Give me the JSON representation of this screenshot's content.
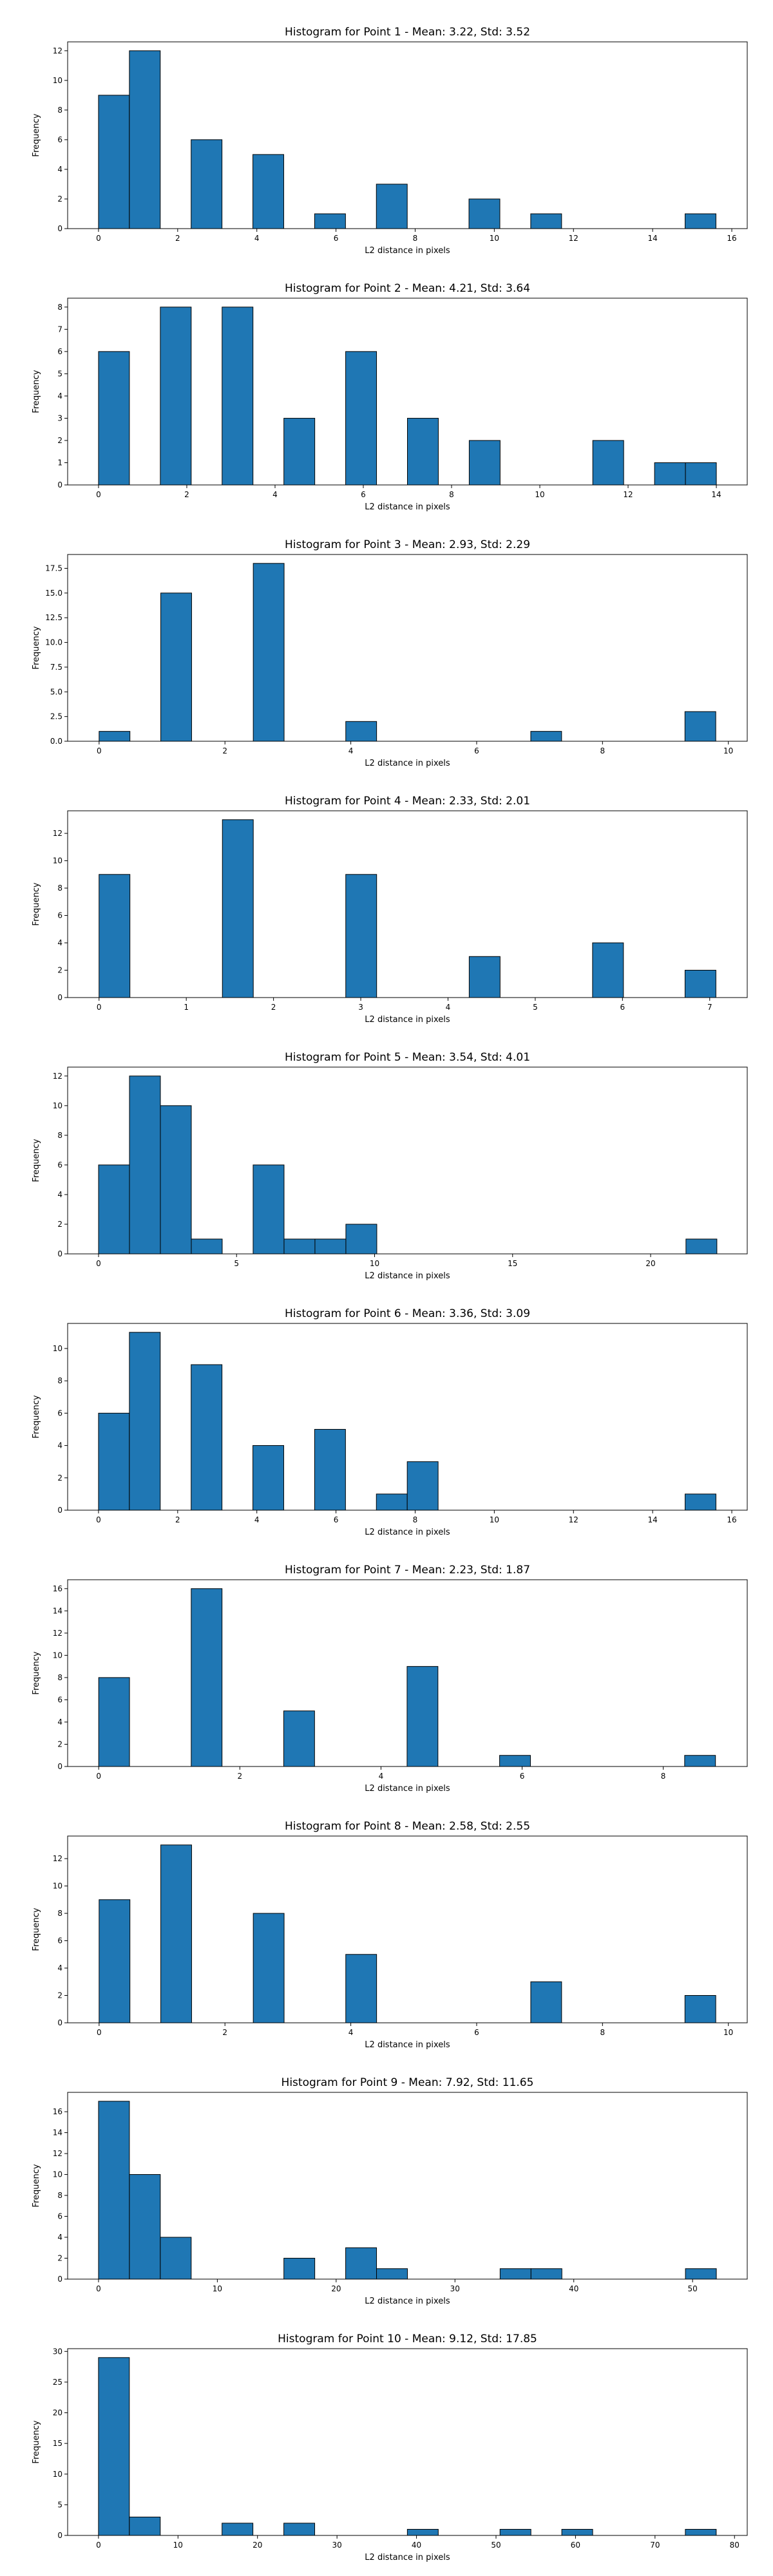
{
  "bar_color": "#1f77b4",
  "edge_color": "#000000",
  "chart_data": [
    {
      "type": "bar",
      "title": "Histogram for Point 1 - Mean: 3.22, Std: 3.52",
      "xlabel": "L2 distance in pixels",
      "ylabel": "Frequency",
      "xlim": [
        -0.78,
        16.39
      ],
      "ylim": [
        0,
        12.6
      ],
      "xticks": [
        0,
        2,
        4,
        6,
        8,
        10,
        12,
        14,
        16
      ],
      "yticks": [
        0,
        2,
        4,
        6,
        8,
        10,
        12
      ],
      "bins": [
        {
          "x0": 0.0,
          "x1": 0.78,
          "count": 9
        },
        {
          "x0": 0.78,
          "x1": 1.56,
          "count": 12
        },
        {
          "x0": 2.34,
          "x1": 3.12,
          "count": 6
        },
        {
          "x0": 3.9,
          "x1": 4.68,
          "count": 5
        },
        {
          "x0": 5.46,
          "x1": 6.24,
          "count": 1
        },
        {
          "x0": 7.02,
          "x1": 7.8,
          "count": 3
        },
        {
          "x0": 9.36,
          "x1": 10.14,
          "count": 2
        },
        {
          "x0": 10.92,
          "x1": 11.7,
          "count": 1
        },
        {
          "x0": 14.82,
          "x1": 15.6,
          "count": 1
        }
      ]
    },
    {
      "type": "bar",
      "title": "Histogram for Point 2 - Mean: 4.21, Std: 3.64",
      "xlabel": "L2 distance in pixels",
      "ylabel": "Frequency",
      "xlim": [
        -0.7,
        14.7
      ],
      "ylim": [
        0,
        8.4
      ],
      "xticks": [
        0,
        2,
        4,
        6,
        8,
        10,
        12,
        14
      ],
      "yticks": [
        0,
        1,
        2,
        3,
        4,
        5,
        6,
        7,
        8
      ],
      "bins": [
        {
          "x0": 0.0,
          "x1": 0.7,
          "count": 6
        },
        {
          "x0": 1.4,
          "x1": 2.1,
          "count": 8
        },
        {
          "x0": 2.8,
          "x1": 3.5,
          "count": 8
        },
        {
          "x0": 4.2,
          "x1": 4.9,
          "count": 3
        },
        {
          "x0": 5.6,
          "x1": 6.3,
          "count": 6
        },
        {
          "x0": 7.0,
          "x1": 7.7,
          "count": 3
        },
        {
          "x0": 8.4,
          "x1": 9.1,
          "count": 2
        },
        {
          "x0": 11.2,
          "x1": 11.9,
          "count": 2
        },
        {
          "x0": 12.6,
          "x1": 13.3,
          "count": 1
        },
        {
          "x0": 13.3,
          "x1": 14.0,
          "count": 1
        }
      ]
    },
    {
      "type": "bar",
      "title": "Histogram for Point 3 - Mean: 2.93, Std: 2.29",
      "xlabel": "L2 distance in pixels",
      "ylabel": "Frequency",
      "xlim": [
        -0.5,
        10.3
      ],
      "ylim": [
        0,
        18.9
      ],
      "xticks": [
        0,
        2,
        4,
        6,
        8,
        10
      ],
      "ytick_labels": [
        "0.0",
        "2.5",
        "5.0",
        "7.5",
        "10.0",
        "12.5",
        "15.0",
        "17.5"
      ],
      "yticks": [
        0,
        2.5,
        5,
        7.5,
        10,
        12.5,
        15,
        17.5
      ],
      "bins": [
        {
          "x0": 0.0,
          "x1": 0.49,
          "count": 1
        },
        {
          "x0": 0.98,
          "x1": 1.47,
          "count": 15
        },
        {
          "x0": 2.45,
          "x1": 2.94,
          "count": 18
        },
        {
          "x0": 3.92,
          "x1": 4.41,
          "count": 2
        },
        {
          "x0": 6.86,
          "x1": 7.35,
          "count": 1
        },
        {
          "x0": 9.31,
          "x1": 9.8,
          "count": 3
        }
      ]
    },
    {
      "type": "bar",
      "title": "Histogram for Point 4 - Mean: 2.33, Std: 2.01",
      "xlabel": "L2 distance in pixels",
      "ylabel": "Frequency",
      "xlim": [
        -0.36,
        7.43
      ],
      "ylim": [
        0,
        13.65
      ],
      "xticks": [
        0,
        1,
        2,
        3,
        4,
        5,
        6,
        7
      ],
      "yticks": [
        0,
        2,
        4,
        6,
        8,
        10,
        12
      ],
      "bins": [
        {
          "x0": 0.0,
          "x1": 0.354,
          "count": 9
        },
        {
          "x0": 1.414,
          "x1": 1.768,
          "count": 13
        },
        {
          "x0": 2.828,
          "x1": 3.182,
          "count": 9
        },
        {
          "x0": 4.243,
          "x1": 4.597,
          "count": 3
        },
        {
          "x0": 5.657,
          "x1": 6.011,
          "count": 4
        },
        {
          "x0": 6.717,
          "x1": 7.071,
          "count": 2
        }
      ]
    },
    {
      "type": "bar",
      "title": "Histogram for Point 5 - Mean: 3.54, Std: 4.01",
      "xlabel": "L2 distance in pixels",
      "ylabel": "Frequency",
      "xlim": [
        -1.12,
        23.5
      ],
      "ylim": [
        0,
        12.6
      ],
      "xticks": [
        0,
        5,
        10,
        15,
        20
      ],
      "yticks": [
        0,
        2,
        4,
        6,
        8,
        10,
        12
      ],
      "bins": [
        {
          "x0": 0.0,
          "x1": 1.12,
          "count": 6
        },
        {
          "x0": 1.12,
          "x1": 2.24,
          "count": 12
        },
        {
          "x0": 2.24,
          "x1": 3.36,
          "count": 10
        },
        {
          "x0": 3.36,
          "x1": 4.48,
          "count": 1
        },
        {
          "x0": 5.6,
          "x1": 6.72,
          "count": 6
        },
        {
          "x0": 6.72,
          "x1": 7.84,
          "count": 1
        },
        {
          "x0": 7.84,
          "x1": 8.96,
          "count": 1
        },
        {
          "x0": 8.96,
          "x1": 10.08,
          "count": 2
        },
        {
          "x0": 21.28,
          "x1": 22.4,
          "count": 1
        }
      ]
    },
    {
      "type": "bar",
      "title": "Histogram for Point 6 - Mean: 3.36, Std: 3.09",
      "xlabel": "L2 distance in pixels",
      "ylabel": "Frequency",
      "xlim": [
        -0.78,
        16.39
      ],
      "ylim": [
        0,
        11.55
      ],
      "xticks": [
        0,
        2,
        4,
        6,
        8,
        10,
        12,
        14,
        16
      ],
      "yticks": [
        0,
        2,
        4,
        6,
        8,
        10
      ],
      "bins": [
        {
          "x0": 0.0,
          "x1": 0.78,
          "count": 6
        },
        {
          "x0": 0.78,
          "x1": 1.56,
          "count": 11
        },
        {
          "x0": 2.34,
          "x1": 3.12,
          "count": 9
        },
        {
          "x0": 3.9,
          "x1": 4.68,
          "count": 4
        },
        {
          "x0": 5.46,
          "x1": 6.24,
          "count": 5
        },
        {
          "x0": 7.02,
          "x1": 7.8,
          "count": 1
        },
        {
          "x0": 7.8,
          "x1": 8.58,
          "count": 3
        },
        {
          "x0": 14.82,
          "x1": 15.6,
          "count": 1
        }
      ]
    },
    {
      "type": "bar",
      "title": "Histogram for Point 7 - Mean: 2.23, Std: 1.87",
      "xlabel": "L2 distance in pixels",
      "ylabel": "Frequency",
      "xlim": [
        -0.44,
        9.19
      ],
      "ylim": [
        0,
        16.8
      ],
      "xticks": [
        0,
        2,
        4,
        6,
        8
      ],
      "yticks": [
        0,
        2,
        4,
        6,
        8,
        10,
        12,
        14,
        16
      ],
      "bins": [
        {
          "x0": 0.0,
          "x1": 0.437,
          "count": 8
        },
        {
          "x0": 1.311,
          "x1": 1.748,
          "count": 16
        },
        {
          "x0": 2.622,
          "x1": 3.059,
          "count": 5
        },
        {
          "x0": 4.37,
          "x1": 4.807,
          "count": 9
        },
        {
          "x0": 5.681,
          "x1": 6.118,
          "count": 1
        },
        {
          "x0": 8.303,
          "x1": 8.74,
          "count": 1
        }
      ]
    },
    {
      "type": "bar",
      "title": "Histogram for Point 8 - Mean: 2.58, Std: 2.55",
      "xlabel": "L2 distance in pixels",
      "ylabel": "Frequency",
      "xlim": [
        -0.5,
        10.3
      ],
      "ylim": [
        0,
        13.65
      ],
      "xticks": [
        0,
        2,
        4,
        6,
        8,
        10
      ],
      "yticks": [
        0,
        2,
        4,
        6,
        8,
        10,
        12
      ],
      "bins": [
        {
          "x0": 0.0,
          "x1": 0.49,
          "count": 9
        },
        {
          "x0": 0.98,
          "x1": 1.47,
          "count": 13
        },
        {
          "x0": 2.45,
          "x1": 2.94,
          "count": 8
        },
        {
          "x0": 3.92,
          "x1": 4.41,
          "count": 5
        },
        {
          "x0": 6.86,
          "x1": 7.35,
          "count": 3
        },
        {
          "x0": 9.31,
          "x1": 9.8,
          "count": 2
        }
      ]
    },
    {
      "type": "bar",
      "title": "Histogram for Point 9 - Mean: 7.92, Std: 11.65",
      "xlabel": "L2 distance in pixels",
      "ylabel": "Frequency",
      "xlim": [
        -2.6,
        54.6
      ],
      "ylim": [
        0,
        17.85
      ],
      "xticks": [
        0,
        10,
        20,
        30,
        40,
        50
      ],
      "yticks": [
        0,
        2,
        4,
        6,
        8,
        10,
        12,
        14,
        16
      ],
      "bins": [
        {
          "x0": 0.0,
          "x1": 2.6,
          "count": 17
        },
        {
          "x0": 2.6,
          "x1": 5.2,
          "count": 10
        },
        {
          "x0": 5.2,
          "x1": 7.8,
          "count": 4
        },
        {
          "x0": 15.6,
          "x1": 18.2,
          "count": 2
        },
        {
          "x0": 20.8,
          "x1": 23.4,
          "count": 3
        },
        {
          "x0": 23.4,
          "x1": 26.0,
          "count": 1
        },
        {
          "x0": 33.8,
          "x1": 36.4,
          "count": 1
        },
        {
          "x0": 36.4,
          "x1": 39.0,
          "count": 1
        },
        {
          "x0": 49.4,
          "x1": 52.0,
          "count": 1
        }
      ]
    },
    {
      "type": "bar",
      "title": "Histogram for Point 10 - Mean: 9.12, Std: 17.85",
      "xlabel": "L2 distance in pixels",
      "ylabel": "Frequency",
      "xlim": [
        -3.88,
        81.6
      ],
      "ylim": [
        0,
        30.45
      ],
      "xticks": [
        0,
        10,
        20,
        30,
        40,
        50,
        60,
        70,
        80
      ],
      "yticks": [
        0,
        5,
        10,
        15,
        20,
        25,
        30
      ],
      "bins": [
        {
          "x0": 0.0,
          "x1": 3.885,
          "count": 29
        },
        {
          "x0": 3.885,
          "x1": 7.77,
          "count": 3
        },
        {
          "x0": 15.54,
          "x1": 19.425,
          "count": 2
        },
        {
          "x0": 23.31,
          "x1": 27.195,
          "count": 2
        },
        {
          "x0": 38.85,
          "x1": 42.735,
          "count": 1
        },
        {
          "x0": 50.505,
          "x1": 54.39,
          "count": 1
        },
        {
          "x0": 58.275,
          "x1": 62.16,
          "count": 1
        },
        {
          "x0": 73.815,
          "x1": 77.7,
          "count": 1
        }
      ]
    }
  ]
}
